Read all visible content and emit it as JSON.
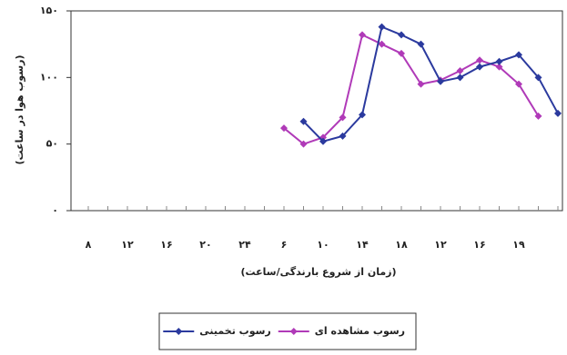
{
  "chart_data": {
    "type": "line",
    "y_label": "(رسوب هوا در ساعت)",
    "x_label": "(زمان از شروع بارندگی/ساعت)",
    "categories": [
      "۸",
      null,
      "۱۲",
      null,
      "۱۶",
      null,
      "۲۰",
      null,
      "۲۴",
      null,
      "۶",
      null,
      "۱۰",
      null,
      "۱۴",
      null,
      "۱۸",
      null,
      "۱۲",
      null,
      "۱۶",
      null,
      "۱۹",
      null,
      null
    ],
    "series": [
      {
        "name": "رسوب مشاهده ای",
        "color": "#b03ab8",
        "values": [
          null,
          null,
          null,
          null,
          null,
          null,
          null,
          null,
          null,
          null,
          62,
          50,
          55,
          70,
          132,
          125,
          118,
          95,
          98,
          105,
          113,
          108,
          95,
          71,
          null
        ]
      },
      {
        "name": "رسوب تخمینی",
        "color": "#2b3a9e",
        "values": [
          null,
          null,
          null,
          null,
          null,
          null,
          null,
          null,
          null,
          null,
          null,
          67,
          52,
          56,
          72,
          138,
          132,
          125,
          97,
          100,
          108,
          112,
          117,
          100,
          73
        ]
      }
    ],
    "ylim": [
      0,
      150
    ],
    "yticks": [
      {
        "value": 0,
        "label": "۰"
      },
      {
        "value": 50,
        "label": "۵۰"
      },
      {
        "value": 100,
        "label": "۱۰۰"
      },
      {
        "value": 150,
        "label": "۱۵۰"
      }
    ]
  }
}
